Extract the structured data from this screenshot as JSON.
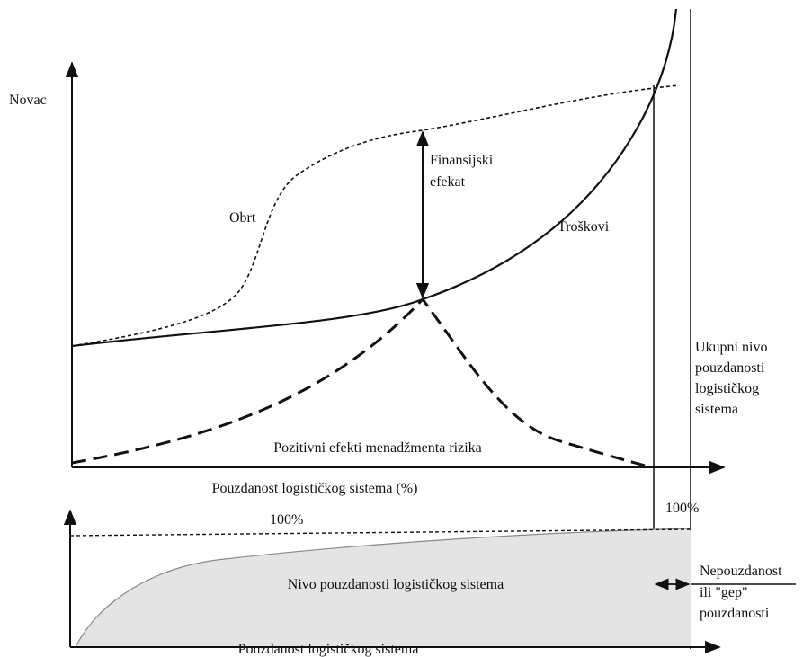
{
  "upper": {
    "y_axis_label": "Novac",
    "gap_label": [
      "Finansijski",
      "efekat"
    ],
    "revenue_label": "Obrt",
    "cost_label": "Troškovi",
    "risk_label": "Pozitivni efekti menadžmenta rizika",
    "x_axis_label": "Pouzdanost logističkog sistema (%)",
    "total_label": [
      "Ukupni nivo",
      "pouzdanosti",
      "logističkog",
      "sistema"
    ]
  },
  "lower": {
    "hundred_left": "100%",
    "hundred_right": "100%",
    "area_label": "Nivo pouzdanosti logističkog sistema",
    "unreliability_label": [
      "Nepouzdanost",
      "ili \"gep\"",
      "pouzdanosti"
    ],
    "x_axis_label": "Pouzdanost logističkog sistema"
  }
}
